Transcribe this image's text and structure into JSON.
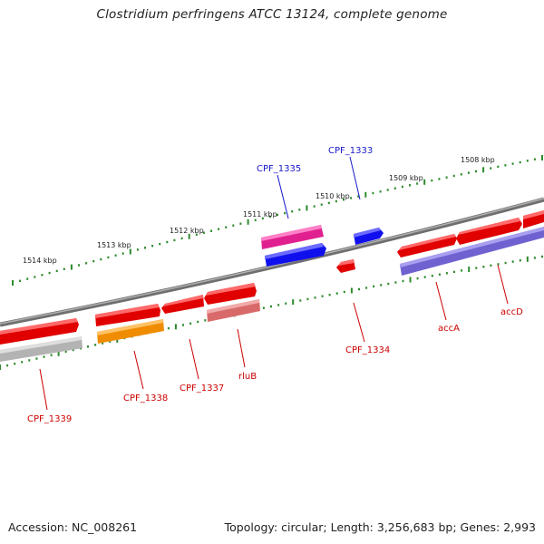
{
  "title": "Clostridium perfringens ATCC 13124, complete genome",
  "accession": "Accession: NC_008261",
  "topology": "Topology: circular; Length: 3,256,683 bp; Genes: 2,993",
  "ruler": [
    "1514 kbp",
    "1513 kbp",
    "1512 kbp",
    "1511 kbp",
    "1510 kbp",
    "1509 kbp",
    "1508 kbp"
  ],
  "colors": {
    "backbone": "#7a7a7a",
    "cds": "#ee0000",
    "label_red": "#cc0000",
    "label_blue": "#1a1acc",
    "magenta": "#e0208f",
    "blue": "#1010ee",
    "orange": "#f08c00",
    "grey": "#b8b8b8",
    "pink": "#e07070",
    "lavender": "#7b6ed6",
    "tick": "#2d8a2d"
  },
  "genes": {
    "cpf_1333": "CPF_1333",
    "cpf_1335": "CPF_1335",
    "cpf_1334": "CPF_1334",
    "acca": "accA",
    "accd": "accD",
    "rlub": "rluB",
    "cpf_1337": "CPF_1337",
    "cpf_1338": "CPF_1338",
    "cpf_1339": "CPF_1339"
  }
}
